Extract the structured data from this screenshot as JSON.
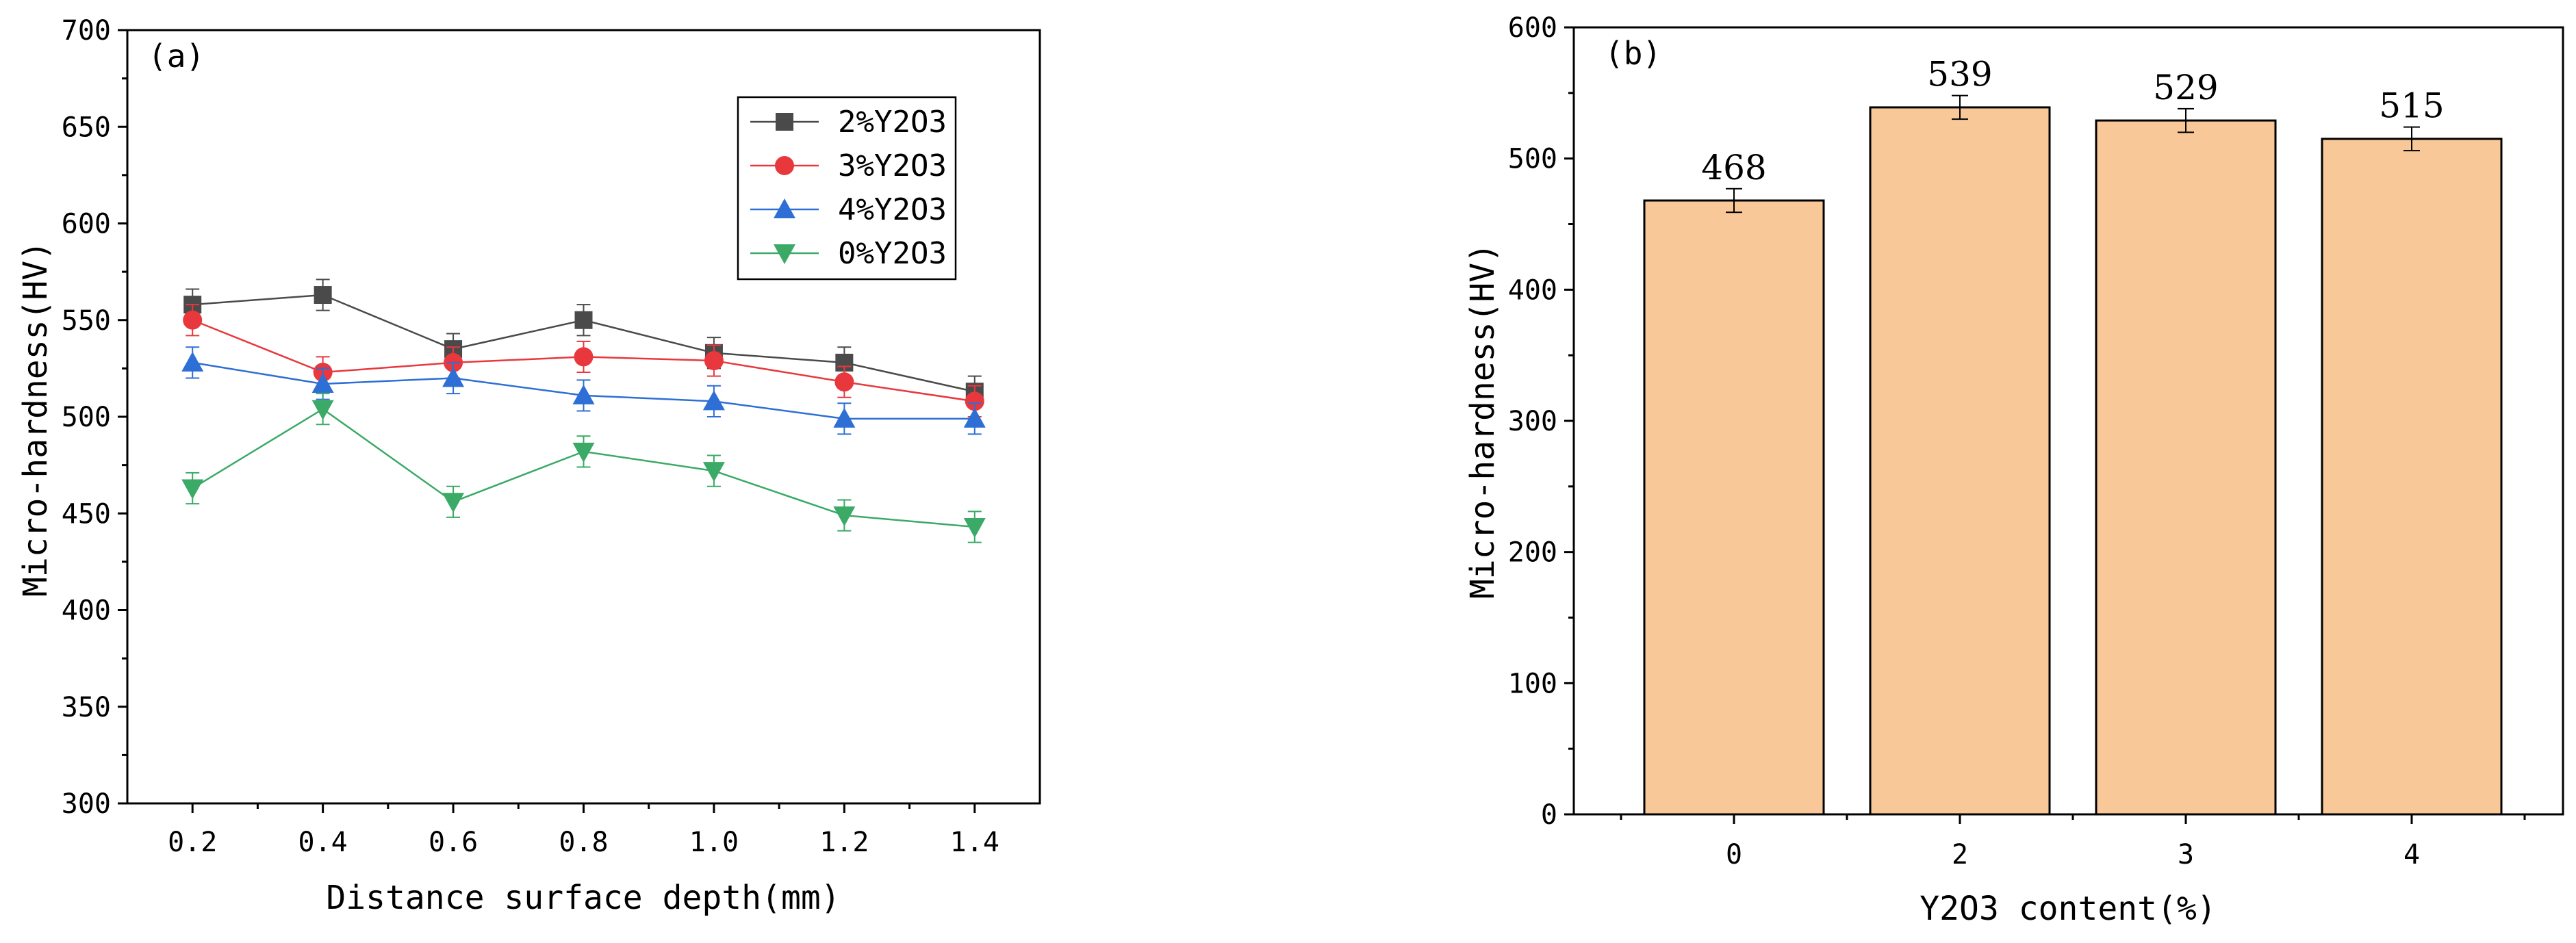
{
  "chart_data": [
    {
      "type": "line",
      "panel_label": "(a)",
      "xlabel": "Distance surface depth(mm)",
      "ylabel": "Micro-hardness(HV)",
      "xlim": [
        0.1,
        1.5
      ],
      "ylim": [
        300,
        700
      ],
      "x": [
        0.2,
        0.4,
        0.6,
        0.8,
        1.0,
        1.2,
        1.4
      ],
      "x_tick_labels": [
        "0.2",
        "0.4",
        "0.6",
        "0.8",
        "1.0",
        "1.2",
        "1.4"
      ],
      "y_ticks": [
        300,
        350,
        400,
        450,
        500,
        550,
        600,
        650,
        700
      ],
      "legend_position": "top-right",
      "series": [
        {
          "name": "2%Y2O3",
          "legend": "2%Y2O3",
          "color": "#4a4a4a",
          "marker": "square",
          "values": [
            558,
            563,
            535,
            550,
            533,
            528,
            513
          ],
          "error": [
            8,
            8,
            8,
            8,
            8,
            8,
            8
          ]
        },
        {
          "name": "3%Y2O3",
          "legend": "3%Y2O3",
          "color": "#e8383d",
          "marker": "circle",
          "values": [
            550,
            523,
            528,
            531,
            529,
            518,
            508
          ],
          "error": [
            8,
            8,
            8,
            8,
            8,
            8,
            8
          ]
        },
        {
          "name": "4%Y2O3",
          "legend": "4%Y2O3",
          "color": "#2e6fd6",
          "marker": "triangle-up",
          "values": [
            528,
            517,
            520,
            511,
            508,
            499,
            499
          ],
          "error": [
            8,
            8,
            8,
            8,
            8,
            8,
            8
          ]
        },
        {
          "name": "0%Y2O3",
          "legend": "0%Y2O3",
          "color": "#3aaa66",
          "marker": "triangle-down",
          "values": [
            463,
            504,
            456,
            482,
            472,
            449,
            443
          ],
          "error": [
            8,
            8,
            8,
            8,
            8,
            8,
            8
          ]
        }
      ]
    },
    {
      "type": "bar",
      "panel_label": "(b)",
      "xlabel": "Y2O3 content(%)",
      "ylabel": "Micro-hardness(HV)",
      "ylim": [
        0,
        600
      ],
      "y_ticks": [
        0,
        100,
        200,
        300,
        400,
        500,
        600
      ],
      "categories": [
        "0",
        "2",
        "3",
        "4"
      ],
      "values": [
        468,
        539,
        529,
        515
      ],
      "value_labels": [
        "468",
        "539",
        "529",
        "515"
      ],
      "error": [
        9,
        9,
        9,
        9
      ],
      "bar_color": "#f9c898",
      "edge_color": "#000000"
    }
  ]
}
